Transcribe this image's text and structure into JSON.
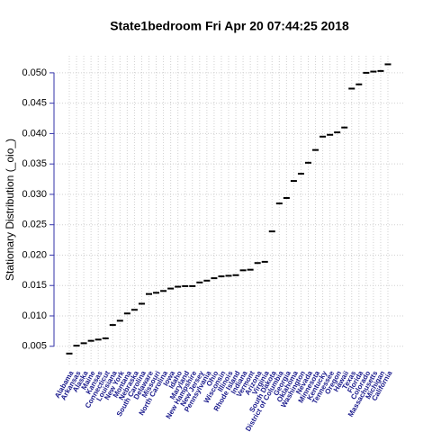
{
  "chart_data": {
    "type": "dash",
    "title": "State1bedroom  Fri Apr 20 07:44:25 2018",
    "y_label": "Stationary Distribution (_oio_)",
    "categories": [
      "Alabama",
      "Arkansas",
      "Alaska",
      "Maine",
      "Kansas",
      "Connecticut",
      "Louisiana",
      "New York",
      "Montana",
      "Nebraska",
      "South Carolina",
      "Delaware",
      "Missouri",
      "North Carolina",
      "Iowa",
      "Idaho",
      "Maryland",
      "New Hampshire",
      "New Jersey",
      "Pennsylvania",
      "Ohio",
      "Wisconsin",
      "Illinois",
      "Rhode Island",
      "Indiana",
      "Vermont",
      "Arizona",
      "Virginia",
      "South Dakota",
      "District of Columbia",
      "Georgia",
      "Oklahoma",
      "Washington",
      "Nevada",
      "Minnesota",
      "Kentucky",
      "Tennessee",
      "Oregon",
      "Hawaii",
      "Texas",
      "Florida",
      "Colorado",
      "Massachusetts",
      "Michigan",
      "California"
    ],
    "values": [
      0.0038,
      0.0051,
      0.0055,
      0.0059,
      0.0061,
      0.0063,
      0.0085,
      0.0092,
      0.0104,
      0.011,
      0.012,
      0.0136,
      0.0138,
      0.0141,
      0.0145,
      0.0148,
      0.0149,
      0.0149,
      0.0155,
      0.0158,
      0.0162,
      0.0165,
      0.0166,
      0.0167,
      0.0175,
      0.0176,
      0.0187,
      0.0189,
      0.0239,
      0.0285,
      0.0294,
      0.0322,
      0.0334,
      0.0352,
      0.0373,
      0.0395,
      0.0398,
      0.0402,
      0.041,
      0.0474,
      0.0481,
      0.05,
      0.0502,
      0.0503,
      0.0514
    ],
    "color": "#000000",
    "label_color": "#1a1a8c",
    "ylim": [
      0.002,
      0.0528
    ],
    "yticks": [
      0.005,
      {
        "value": 0.01,
        "label": "0.010"
      },
      0.015,
      {
        "value": 0.02,
        "label": "0.020"
      },
      0.025,
      {
        "value": 0.03,
        "label": "0.030"
      },
      0.035,
      {
        "value": 0.04,
        "label": "0.040"
      },
      0.045,
      {
        "value": 0.05,
        "label": "0.050"
      }
    ],
    "grid": true
  }
}
